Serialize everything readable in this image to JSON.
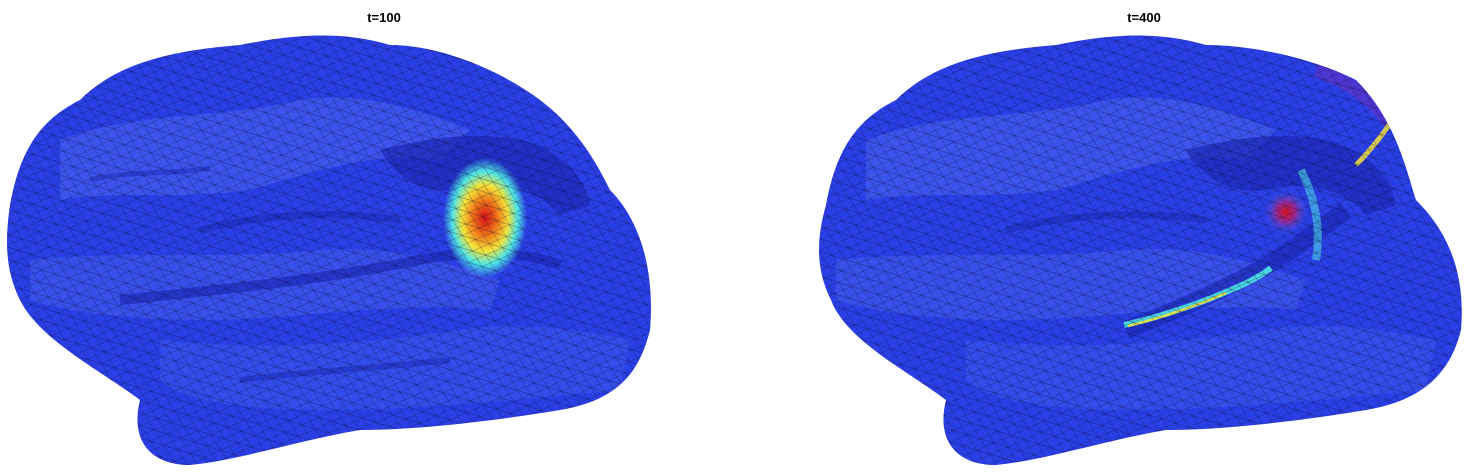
{
  "figure": {
    "panels": [
      {
        "title": "t=100",
        "hotspot": "single-focal"
      },
      {
        "title": "t=400",
        "hotspot": "spread"
      }
    ],
    "colors": {
      "background": "#ffffff",
      "cortex_base": "#2a3fe6",
      "cortex_light": "#4a64f0",
      "cortex_dark": "#1d2bb8",
      "mesh_line": "#0a0a2a",
      "hot_red": "#d4101a",
      "hot_orange": "#f07818",
      "hot_yellow": "#f4e43a",
      "hot_cyan": "#4ee6e6"
    }
  }
}
